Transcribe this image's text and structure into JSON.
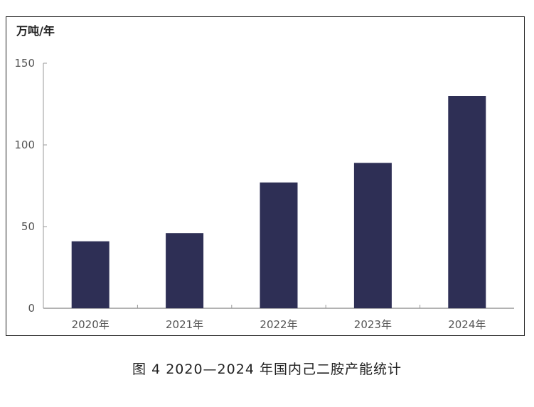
{
  "caption": "图 4  2020—2024 年国内己二胺产能统计",
  "chart_data": {
    "type": "bar",
    "unit_label": "万吨/年",
    "categories": [
      "2020年",
      "2021年",
      "2022年",
      "2023年",
      "2024年"
    ],
    "values": [
      41,
      46,
      77,
      89,
      130
    ],
    "yticks": [
      0,
      50,
      100,
      150
    ],
    "ylim": [
      0,
      150
    ],
    "grid": false,
    "bar_color": "#2e2f55",
    "axis_color": "#999999"
  }
}
